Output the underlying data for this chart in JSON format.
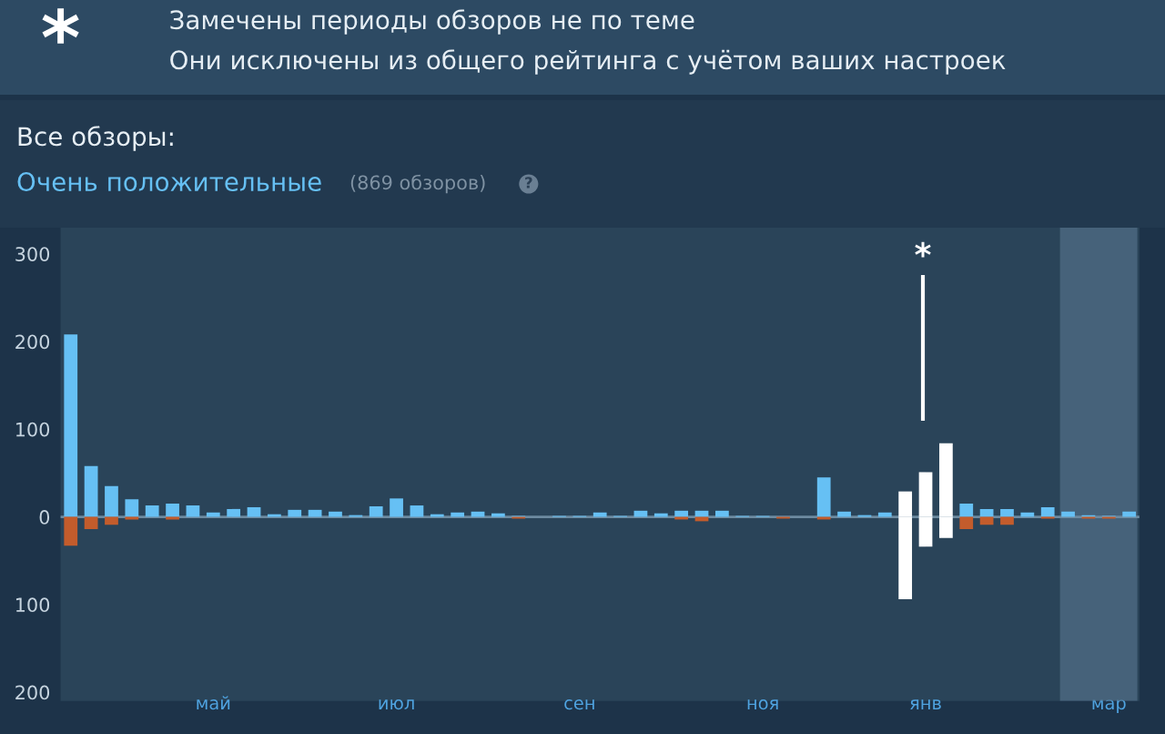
{
  "chart_data": {
    "type": "bar",
    "title": "Замечены периоды обзоров не по теме",
    "subtitle": "Они исключены из общего рейтинга с учётом ваших настроек",
    "annotations": [
      "*",
      "Все обзоры:",
      "Очень положительные",
      "(869 обзоров)",
      "?",
      "*"
    ],
    "categories": [
      null,
      null,
      null,
      null,
      null,
      null,
      null,
      "май",
      null,
      null,
      null,
      null,
      null,
      null,
      null,
      null,
      "июл",
      null,
      null,
      null,
      null,
      null,
      null,
      null,
      null,
      "сен",
      null,
      null,
      null,
      null,
      null,
      null,
      null,
      null,
      "ноя",
      null,
      null,
      null,
      null,
      null,
      null,
      null,
      "янв",
      null,
      null,
      null,
      null,
      null,
      null,
      null,
      null,
      "мар",
      null
    ],
    "series": [
      {
        "color": "#66c0f4",
        "values": [
          208,
          58,
          35,
          20,
          13,
          15,
          13,
          5,
          9,
          11,
          3,
          8,
          8,
          6,
          2,
          12,
          21,
          13,
          3,
          5,
          6,
          4,
          1,
          0,
          1,
          1,
          5,
          1,
          7,
          4,
          7,
          7,
          7,
          1,
          1,
          0,
          0,
          45,
          6,
          2,
          5,
          null,
          null,
          null,
          15,
          9,
          9,
          5,
          11,
          6,
          2,
          1,
          6
        ]
      },
      {
        "color": "#c35c2c",
        "values": [
          -33,
          -14,
          -9,
          -3,
          0,
          -3,
          0,
          0,
          0,
          0,
          0,
          0,
          0,
          0,
          0,
          0,
          0,
          0,
          0,
          0,
          0,
          0,
          -2,
          0,
          0,
          0,
          0,
          0,
          0,
          0,
          -3,
          -5,
          0,
          0,
          0,
          -2,
          0,
          -3,
          0,
          0,
          0,
          null,
          null,
          null,
          -14,
          -9,
          -9,
          0,
          -2,
          0,
          -2,
          -2,
          0
        ]
      },
      {
        "color": "#ffffff",
        "values": [
          null,
          null,
          null,
          null,
          null,
          null,
          null,
          null,
          null,
          null,
          null,
          null,
          null,
          null,
          null,
          null,
          null,
          null,
          null,
          null,
          null,
          null,
          null,
          null,
          null,
          null,
          null,
          null,
          null,
          null,
          null,
          null,
          null,
          null,
          null,
          null,
          null,
          null,
          null,
          null,
          null,
          29,
          51,
          84,
          null,
          null,
          null,
          null,
          null,
          null,
          null,
          null,
          null
        ]
      },
      {
        "color": "#ffffff",
        "values": [
          null,
          null,
          null,
          null,
          null,
          null,
          null,
          null,
          null,
          null,
          null,
          null,
          null,
          null,
          null,
          null,
          null,
          null,
          null,
          null,
          null,
          null,
          null,
          null,
          null,
          null,
          null,
          null,
          null,
          null,
          null,
          null,
          null,
          null,
          null,
          null,
          null,
          null,
          null,
          null,
          null,
          -94,
          -34,
          -24,
          null,
          null,
          null,
          null,
          null,
          null,
          null,
          null,
          null
        ]
      }
    ],
    "ylim": [
      -210,
      330
    ],
    "yticks": [
      {
        "value": 300,
        "label": "300"
      },
      {
        "value": 200,
        "label": "200"
      },
      {
        "value": 100,
        "label": "100"
      },
      {
        "value": 0,
        "label": "0"
      },
      {
        "value": -100,
        "label": "100"
      },
      {
        "value": -200,
        "label": "200"
      }
    ],
    "ref_lines": [
      {
        "axis": "y",
        "value": 0,
        "color": "#6d8aa0"
      }
    ],
    "grid": false,
    "legend": false
  }
}
